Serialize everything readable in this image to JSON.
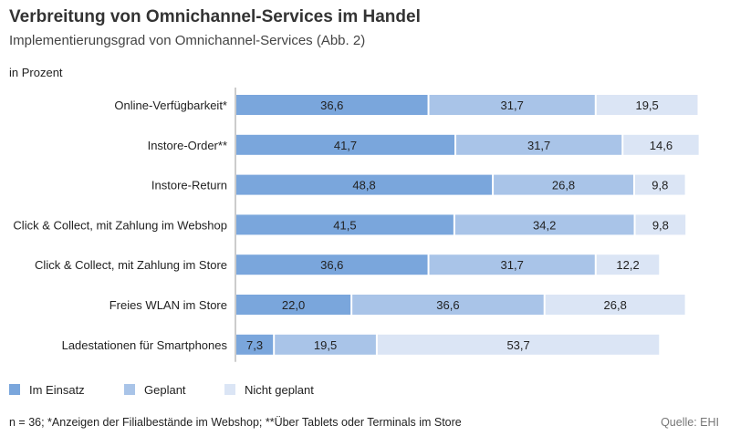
{
  "header": {
    "title": "Verbreitung von Omnichannel-Services im Handel",
    "subtitle": "Implementierungsgrad von Omnichannel-Services  (Abb. 2)",
    "unit": "in Prozent"
  },
  "footer": {
    "note": "n = 36; *Anzeigen der Filialbestände im Webshop; **Über Tablets oder Terminals im Store",
    "source": "Quelle: EHI"
  },
  "colors": {
    "im_einsatz": "#7aa6dc",
    "geplant": "#a9c4e8",
    "nicht_geplant": "#dbe5f5"
  },
  "chart_data": {
    "type": "bar",
    "orientation": "horizontal",
    "stacked": true,
    "categories": [
      "Online-Verfügbarkeit*",
      "Instore-Order**",
      "Instore-Return",
      "Click & Collect, mit Zahlung im Webshop",
      "Click & Collect, mit Zahlung im Store",
      "Freies WLAN im Store",
      "Ladestationen für Smartphones"
    ],
    "series": [
      {
        "name": "Im Einsatz",
        "values": [
          36.6,
          41.7,
          48.8,
          41.5,
          36.6,
          22.0,
          7.3
        ],
        "labels": [
          "36,6",
          "41,7",
          "48,8",
          "41,5",
          "36,6",
          "22,0",
          "7,3"
        ]
      },
      {
        "name": "Geplant",
        "values": [
          31.7,
          31.7,
          26.8,
          34.2,
          31.7,
          36.6,
          19.5
        ],
        "labels": [
          "31,7",
          "31,7",
          "26,8",
          "34,2",
          "31,7",
          "36,6",
          "19,5"
        ]
      },
      {
        "name": "Nicht geplant",
        "values": [
          19.5,
          14.6,
          9.8,
          9.8,
          12.2,
          26.8,
          53.7
        ],
        "labels": [
          "19,5",
          "14,6",
          "9,8",
          "9,8",
          "12,2",
          "26,8",
          "53,7"
        ]
      }
    ],
    "xlim": [
      0,
      100
    ],
    "grid": false,
    "legend": "bottom-left"
  }
}
